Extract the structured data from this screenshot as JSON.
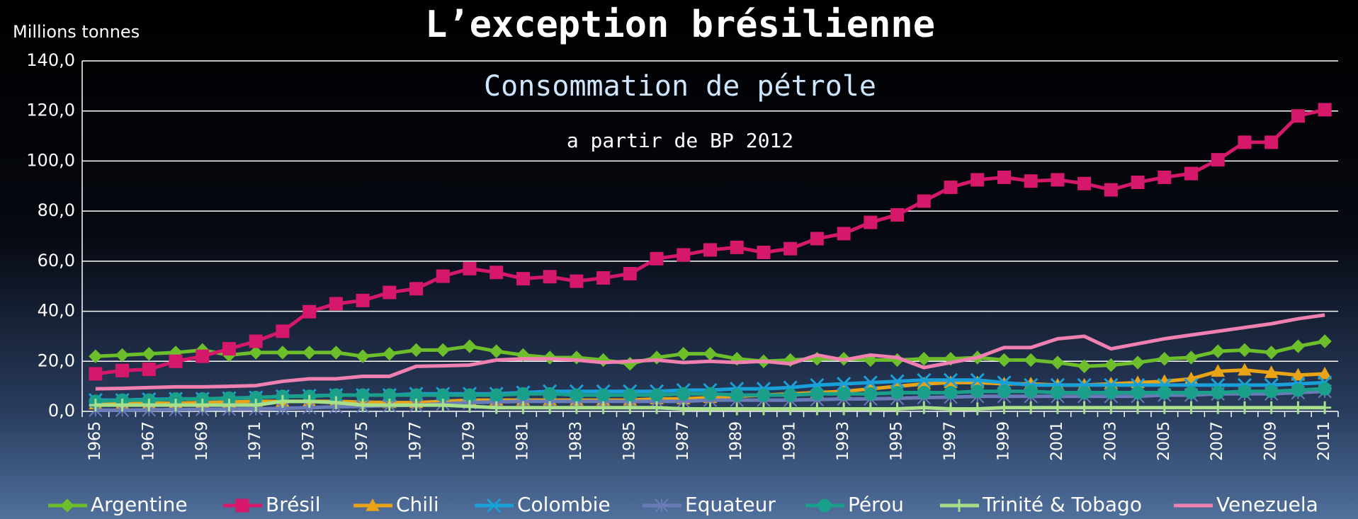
{
  "chart_data": {
    "type": "line",
    "title": "L’exception brésilienne",
    "subtitle": "Consommation de pétrole",
    "annotation": "a partir de BP 2012",
    "y_label": "Millions tonnes",
    "categories": [
      "1965",
      null,
      "1967",
      null,
      "1969",
      null,
      "1971",
      null,
      "1973",
      null,
      "1975",
      null,
      "1977",
      null,
      "1979",
      null,
      "1981",
      null,
      "1983",
      null,
      "1985",
      null,
      "1987",
      null,
      "1989",
      null,
      "1991",
      null,
      "1993",
      null,
      "1995",
      null,
      "1997",
      null,
      "1999",
      null,
      "2001",
      null,
      "2003",
      null,
      "2005",
      null,
      "2007",
      null,
      "2009",
      null,
      "2011"
    ],
    "ylim": [
      0,
      140
    ],
    "yticks": [
      {
        "value": 0,
        "label": "0,0"
      },
      {
        "value": 20,
        "label": "20,0"
      },
      {
        "value": 40,
        "label": "40,0"
      },
      {
        "value": 60,
        "label": "60,0"
      },
      {
        "value": 80,
        "label": "80,0"
      },
      {
        "value": 100,
        "label": "100,0"
      },
      {
        "value": 120,
        "label": "120,0"
      },
      {
        "value": 140,
        "label": "140,0"
      }
    ],
    "grid": true,
    "legend": "bottom",
    "series": [
      {
        "name": "Argentine",
        "color": "#6cbf2a",
        "marker": "diamond",
        "values": [
          22,
          22.5,
          23,
          23.5,
          24.5,
          22.5,
          23.5,
          23.5,
          23.5,
          23.5,
          22,
          23,
          24.5,
          24.5,
          26,
          24,
          22.5,
          21.5,
          21.5,
          20.5,
          19,
          21.5,
          23,
          23,
          21,
          20,
          20.5,
          21,
          21,
          20.5,
          20.5,
          21,
          21,
          21.5,
          20.5,
          20.5,
          19.5,
          18,
          18.5,
          19.5,
          21,
          21.5,
          24,
          24.5,
          23.5,
          26,
          28
        ]
      },
      {
        "name": "Brésil",
        "color": "#d6186b",
        "marker": "square",
        "values": [
          15,
          16.3,
          16.8,
          20,
          22,
          25,
          28,
          32,
          39.8,
          43,
          44.3,
          47.5,
          49,
          54,
          57,
          55.5,
          53,
          53.8,
          52,
          53.3,
          55,
          61,
          62.5,
          64.5,
          65.5,
          63.5,
          65,
          69,
          71,
          75.5,
          78.5,
          84,
          89.5,
          92.5,
          93.5,
          92,
          92.5,
          91,
          88.5,
          91.5,
          93.5,
          95,
          100.5,
          107.5,
          107.5,
          118,
          120.5
        ]
      },
      {
        "name": "Chili",
        "color": "#e8a317",
        "marker": "triangle",
        "values": [
          3,
          3,
          3.2,
          3.3,
          3.5,
          3.7,
          4,
          4,
          4,
          4,
          3.7,
          3.5,
          3.5,
          4,
          4.5,
          4.5,
          4.5,
          4.5,
          4.5,
          4.5,
          4.5,
          5,
          5,
          5.5,
          6,
          6.5,
          7,
          7.5,
          8,
          9,
          10,
          11,
          11.5,
          11.5,
          11,
          11,
          10.5,
          10.5,
          11,
          11.5,
          12,
          13,
          16,
          16.5,
          15.5,
          14.5,
          15
        ]
      },
      {
        "name": "Colombie",
        "color": "#1aa0d8",
        "marker": "x",
        "values": [
          4.5,
          4.5,
          4.8,
          5,
          5,
          5.2,
          5.5,
          6,
          6.2,
          6.5,
          6.5,
          6.5,
          7,
          7,
          7,
          7,
          7.5,
          8,
          8,
          8,
          8,
          8,
          8.5,
          8.5,
          9,
          9,
          9.5,
          10.5,
          11,
          11.5,
          12,
          12.5,
          12.5,
          12.5,
          11.5,
          10.5,
          10.5,
          10.5,
          10.5,
          10.5,
          10.5,
          10.5,
          10.5,
          10.5,
          10.5,
          11,
          11.5
        ]
      },
      {
        "name": "Equateur",
        "color": "#6a7bb8",
        "marker": "star",
        "values": [
          0.5,
          0.5,
          0.6,
          0.7,
          0.8,
          0.9,
          1,
          1.2,
          1.5,
          1.8,
          2,
          2.3,
          2.5,
          3,
          3.5,
          3.8,
          4,
          4,
          4,
          4,
          4,
          4,
          4,
          4.5,
          4.5,
          4.5,
          4.5,
          4.7,
          5,
          5,
          5.2,
          5.5,
          5.7,
          6,
          6,
          6,
          6,
          6,
          6,
          6,
          6.5,
          6.5,
          7,
          7,
          7,
          7.5,
          8
        ]
      },
      {
        "name": "Pérou",
        "color": "#1aa08a",
        "marker": "circle",
        "values": [
          4,
          4.5,
          4.5,
          5,
          5,
          5.3,
          5.5,
          6,
          6,
          6.5,
          6.5,
          6.5,
          6.5,
          6.5,
          6.5,
          6.5,
          7,
          7,
          6.5,
          6.5,
          6.5,
          6.5,
          7,
          7,
          6.5,
          6.5,
          6.5,
          7,
          7,
          7,
          7.5,
          7.5,
          7.5,
          8,
          8,
          8,
          7.5,
          7.5,
          7.5,
          7.5,
          7.5,
          7.5,
          7.5,
          8,
          8,
          8.5,
          9
        ]
      },
      {
        "name": "Trinité & Tobago",
        "color": "#a8e08a",
        "marker": "plus",
        "values": [
          2.5,
          2.5,
          2.5,
          2.5,
          2.5,
          2.5,
          2.5,
          4,
          4,
          3.5,
          2.5,
          2.5,
          2.5,
          2.5,
          2,
          1.5,
          1.5,
          1.5,
          1.5,
          1.5,
          1.5,
          1.5,
          1,
          1,
          1,
          1,
          1,
          1,
          1,
          1,
          1,
          1.5,
          1,
          1,
          1.5,
          1.5,
          1.5,
          1.5,
          1.5,
          1.5,
          1.5,
          1.5,
          1.5,
          1.5,
          1.5,
          1.5,
          1.5
        ]
      },
      {
        "name": "Venezuela",
        "color": "#f080b0",
        "marker": "none",
        "values": [
          9,
          9.2,
          9.5,
          9.8,
          9.8,
          10,
          10.3,
          12,
          13,
          13,
          14,
          14,
          18,
          18.2,
          18.5,
          20.5,
          21,
          21,
          20.5,
          19.5,
          20,
          20.5,
          19.5,
          20,
          19.5,
          20,
          19,
          22.5,
          20.5,
          22.5,
          21.5,
          17.5,
          19.5,
          21.5,
          25.5,
          25.5,
          29,
          30,
          25,
          27,
          29,
          30.5,
          32,
          33.5,
          35,
          37,
          38.5
        ]
      }
    ]
  }
}
